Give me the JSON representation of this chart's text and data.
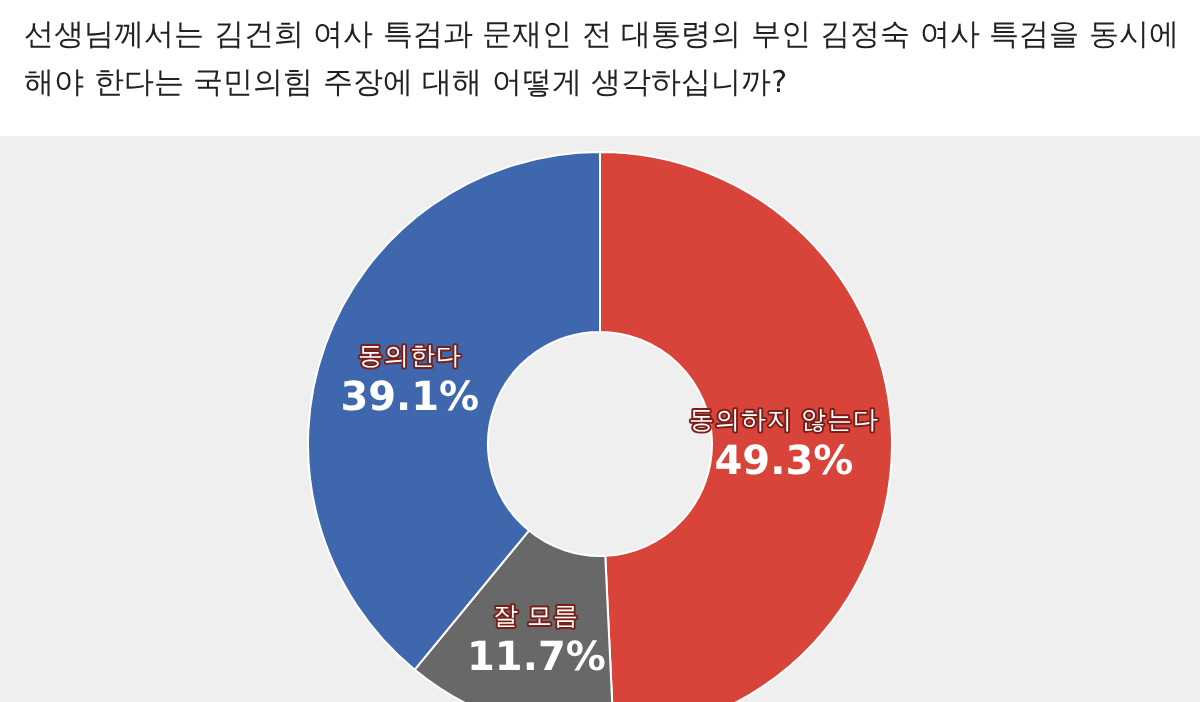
{
  "chart_data": {
    "type": "donut",
    "title": "선생님께서는 김건희 여사 특검과 문재인 전 대통령의 부인 김정숙 여사 특검을 동시에 해야 한다는 국민의힘 주장에 대해 어떻게 생각하십니까?",
    "categories": [
      "동의하지 않는다",
      "잘 모름",
      "동의한다"
    ],
    "values": [
      49.3,
      11.7,
      39.1
    ],
    "colors": [
      "#d8443a",
      "#686868",
      "#3f67ad"
    ],
    "value_labels": [
      "49.3%",
      "11.7%",
      "39.1%"
    ]
  }
}
